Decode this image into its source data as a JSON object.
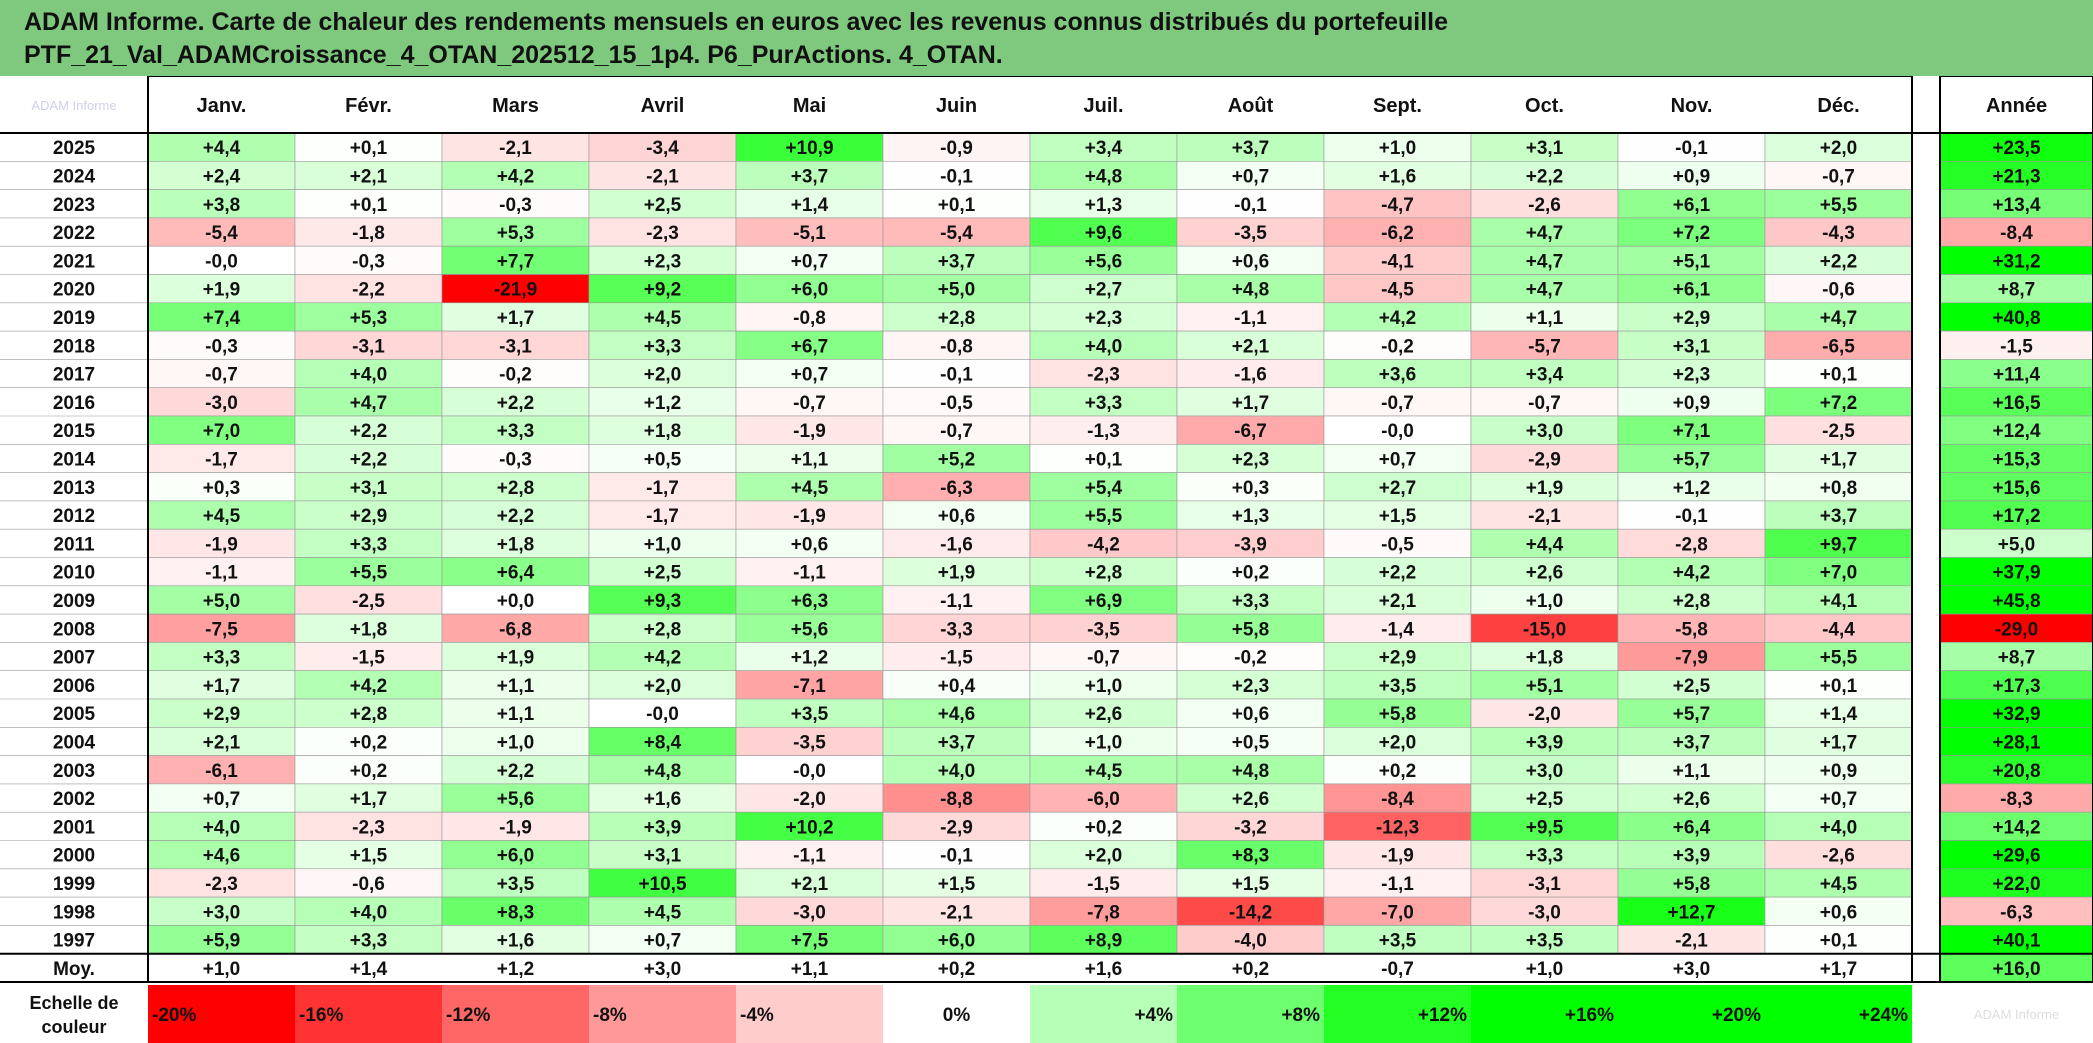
{
  "title": {
    "line1": "ADAM Informe. Carte de chaleur des rendements mensuels en euros avec les revenus connus distribués du portefeuille",
    "line2": "PTF_21_Val_ADAMCroissance_4_OTAN_202512_15_1p4. P6_PurActions. 4_OTAN."
  },
  "colors": {
    "title_bg": "#7fc97f",
    "negative_max": "#ff0000",
    "neutral": "#ffffff",
    "positive_max": "#00ff00",
    "grid": "#999999",
    "border": "#000000"
  },
  "corner_watermark": "ADAM Informe",
  "legend_watermark": "ADAM Informe",
  "chart_data": {
    "type": "heatmap",
    "title": "Carte de chaleur des rendements mensuels en euros",
    "months": [
      "Janv.",
      "Févr.",
      "Mars",
      "Avril",
      "Mai",
      "Juin",
      "Juil.",
      "Août",
      "Sept.",
      "Oct.",
      "Nov.",
      "Déc."
    ],
    "year_header": "Année",
    "rows": [
      {
        "year": "2025",
        "values": [
          "+4,4",
          "+0,1",
          "-2,1",
          "-3,4",
          "+10,9",
          "-0,9",
          "+3,4",
          "+3,7",
          "+1,0",
          "+3,1",
          "-0,1",
          "+2,0"
        ],
        "annual": "+23,5"
      },
      {
        "year": "2024",
        "values": [
          "+2,4",
          "+2,1",
          "+4,2",
          "-2,1",
          "+3,7",
          "-0,1",
          "+4,8",
          "+0,7",
          "+1,6",
          "+2,2",
          "+0,9",
          "-0,7"
        ],
        "annual": "+21,3"
      },
      {
        "year": "2023",
        "values": [
          "+3,8",
          "+0,1",
          "-0,3",
          "+2,5",
          "+1,4",
          "+0,1",
          "+1,3",
          "-0,1",
          "-4,7",
          "-2,6",
          "+6,1",
          "+5,5"
        ],
        "annual": "+13,4"
      },
      {
        "year": "2022",
        "values": [
          "-5,4",
          "-1,8",
          "+5,3",
          "-2,3",
          "-5,1",
          "-5,4",
          "+9,6",
          "-3,5",
          "-6,2",
          "+4,7",
          "+7,2",
          "-4,3"
        ],
        "annual": "-8,4"
      },
      {
        "year": "2021",
        "values": [
          "-0,0",
          "-0,3",
          "+7,7",
          "+2,3",
          "+0,7",
          "+3,7",
          "+5,6",
          "+0,6",
          "-4,1",
          "+4,7",
          "+5,1",
          "+2,2"
        ],
        "annual": "+31,2"
      },
      {
        "year": "2020",
        "values": [
          "+1,9",
          "-2,2",
          "-21,9",
          "+9,2",
          "+6,0",
          "+5,0",
          "+2,7",
          "+4,8",
          "-4,5",
          "+4,7",
          "+6,1",
          "-0,6"
        ],
        "annual": "+8,7"
      },
      {
        "year": "2019",
        "values": [
          "+7,4",
          "+5,3",
          "+1,7",
          "+4,5",
          "-0,8",
          "+2,8",
          "+2,3",
          "-1,1",
          "+4,2",
          "+1,1",
          "+2,9",
          "+4,7"
        ],
        "annual": "+40,8"
      },
      {
        "year": "2018",
        "values": [
          "-0,3",
          "-3,1",
          "-3,1",
          "+3,3",
          "+6,7",
          "-0,8",
          "+4,0",
          "+2,1",
          "-0,2",
          "-5,7",
          "+3,1",
          "-6,5"
        ],
        "annual": "-1,5"
      },
      {
        "year": "2017",
        "values": [
          "-0,7",
          "+4,0",
          "-0,2",
          "+2,0",
          "+0,7",
          "-0,1",
          "-2,3",
          "-1,6",
          "+3,6",
          "+3,4",
          "+2,3",
          "+0,1"
        ],
        "annual": "+11,4"
      },
      {
        "year": "2016",
        "values": [
          "-3,0",
          "+4,7",
          "+2,2",
          "+1,2",
          "-0,7",
          "-0,5",
          "+3,3",
          "+1,7",
          "-0,7",
          "-0,7",
          "+0,9",
          "+7,2"
        ],
        "annual": "+16,5"
      },
      {
        "year": "2015",
        "values": [
          "+7,0",
          "+2,2",
          "+3,3",
          "+1,8",
          "-1,9",
          "-0,7",
          "-1,3",
          "-6,7",
          "-0,0",
          "+3,0",
          "+7,1",
          "-2,5"
        ],
        "annual": "+12,4"
      },
      {
        "year": "2014",
        "values": [
          "-1,7",
          "+2,2",
          "-0,3",
          "+0,5",
          "+1,1",
          "+5,2",
          "+0,1",
          "+2,3",
          "+0,7",
          "-2,9",
          "+5,7",
          "+1,7"
        ],
        "annual": "+15,3"
      },
      {
        "year": "2013",
        "values": [
          "+0,3",
          "+3,1",
          "+2,8",
          "-1,7",
          "+4,5",
          "-6,3",
          "+5,4",
          "+0,3",
          "+2,7",
          "+1,9",
          "+1,2",
          "+0,8"
        ],
        "annual": "+15,6"
      },
      {
        "year": "2012",
        "values": [
          "+4,5",
          "+2,9",
          "+2,2",
          "-1,7",
          "-1,9",
          "+0,6",
          "+5,5",
          "+1,3",
          "+1,5",
          "-2,1",
          "-0,1",
          "+3,7"
        ],
        "annual": "+17,2"
      },
      {
        "year": "2011",
        "values": [
          "-1,9",
          "+3,3",
          "+1,8",
          "+1,0",
          "+0,6",
          "-1,6",
          "-4,2",
          "-3,9",
          "-0,5",
          "+4,4",
          "-2,8",
          "+9,7"
        ],
        "annual": "+5,0"
      },
      {
        "year": "2010",
        "values": [
          "-1,1",
          "+5,5",
          "+6,4",
          "+2,5",
          "-1,1",
          "+1,9",
          "+2,8",
          "+0,2",
          "+2,2",
          "+2,6",
          "+4,2",
          "+7,0"
        ],
        "annual": "+37,9"
      },
      {
        "year": "2009",
        "values": [
          "+5,0",
          "-2,5",
          "+0,0",
          "+9,3",
          "+6,3",
          "-1,1",
          "+6,9",
          "+3,3",
          "+2,1",
          "+1,0",
          "+2,8",
          "+4,1"
        ],
        "annual": "+45,8"
      },
      {
        "year": "2008",
        "values": [
          "-7,5",
          "+1,8",
          "-6,8",
          "+2,8",
          "+5,6",
          "-3,3",
          "-3,5",
          "+5,8",
          "-1,4",
          "-15,0",
          "-5,8",
          "-4,4"
        ],
        "annual": "-29,0"
      },
      {
        "year": "2007",
        "values": [
          "+3,3",
          "-1,5",
          "+1,9",
          "+4,2",
          "+1,2",
          "-1,5",
          "-0,7",
          "-0,2",
          "+2,9",
          "+1,8",
          "-7,9",
          "+5,5"
        ],
        "annual": "+8,7"
      },
      {
        "year": "2006",
        "values": [
          "+1,7",
          "+4,2",
          "+1,1",
          "+2,0",
          "-7,1",
          "+0,4",
          "+1,0",
          "+2,3",
          "+3,5",
          "+5,1",
          "+2,5",
          "+0,1"
        ],
        "annual": "+17,3"
      },
      {
        "year": "2005",
        "values": [
          "+2,9",
          "+2,8",
          "+1,1",
          "-0,0",
          "+3,5",
          "+4,6",
          "+2,6",
          "+0,6",
          "+5,8",
          "-2,0",
          "+5,7",
          "+1,4"
        ],
        "annual": "+32,9"
      },
      {
        "year": "2004",
        "values": [
          "+2,1",
          "+0,2",
          "+1,0",
          "+8,4",
          "-3,5",
          "+3,7",
          "+1,0",
          "+0,5",
          "+2,0",
          "+3,9",
          "+3,7",
          "+1,7"
        ],
        "annual": "+28,1"
      },
      {
        "year": "2003",
        "values": [
          "-6,1",
          "+0,2",
          "+2,2",
          "+4,8",
          "-0,0",
          "+4,0",
          "+4,5",
          "+4,8",
          "+0,2",
          "+3,0",
          "+1,1",
          "+0,9"
        ],
        "annual": "+20,8"
      },
      {
        "year": "2002",
        "values": [
          "+0,7",
          "+1,7",
          "+5,6",
          "+1,6",
          "-2,0",
          "-8,8",
          "-6,0",
          "+2,6",
          "-8,4",
          "+2,5",
          "+2,6",
          "+0,7"
        ],
        "annual": "-8,3"
      },
      {
        "year": "2001",
        "values": [
          "+4,0",
          "-2,3",
          "-1,9",
          "+3,9",
          "+10,2",
          "-2,9",
          "+0,2",
          "-3,2",
          "-12,3",
          "+9,5",
          "+6,4",
          "+4,0"
        ],
        "annual": "+14,2"
      },
      {
        "year": "2000",
        "values": [
          "+4,6",
          "+1,5",
          "+6,0",
          "+3,1",
          "-1,1",
          "-0,1",
          "+2,0",
          "+8,3",
          "-1,9",
          "+3,3",
          "+3,9",
          "-2,6"
        ],
        "annual": "+29,6"
      },
      {
        "year": "1999",
        "values": [
          "-2,3",
          "-0,6",
          "+3,5",
          "+10,5",
          "+2,1",
          "+1,5",
          "-1,5",
          "+1,5",
          "-1,1",
          "-3,1",
          "+5,8",
          "+4,5"
        ],
        "annual": "+22,0"
      },
      {
        "year": "1998",
        "values": [
          "+3,0",
          "+4,0",
          "+8,3",
          "+4,5",
          "-3,0",
          "-2,1",
          "-7,8",
          "-14,2",
          "-7,0",
          "-3,0",
          "+12,7",
          "+0,6"
        ],
        "annual": "-6,3"
      },
      {
        "year": "1997",
        "values": [
          "+5,9",
          "+3,3",
          "+1,6",
          "+0,7",
          "+7,5",
          "+6,0",
          "+8,9",
          "-4,0",
          "+3,5",
          "+3,5",
          "-2,1",
          "+0,1"
        ],
        "annual": "+40,1"
      }
    ],
    "average": {
      "label": "Moy.",
      "values": [
        "+1,0",
        "+1,4",
        "+1,2",
        "+3,0",
        "+1,1",
        "+0,2",
        "+1,6",
        "+0,2",
        "-0,7",
        "+1,0",
        "+3,0",
        "+1,7"
      ],
      "annual": "+16,0"
    },
    "color_scale": {
      "label_line1": "Echelle de",
      "label_line2": "couleur",
      "steps": [
        {
          "label": "-20%",
          "value": -20
        },
        {
          "label": "-16%",
          "value": -16
        },
        {
          "label": "-12%",
          "value": -12
        },
        {
          "label": "-8%",
          "value": -8
        },
        {
          "label": "-4%",
          "value": -4
        },
        {
          "label": "0%",
          "value": 0
        },
        {
          "label": "+4%",
          "value": 4
        },
        {
          "label": "+8%",
          "value": 8
        },
        {
          "label": "+12%",
          "value": 12
        },
        {
          "label": "+16%",
          "value": 16
        },
        {
          "label": "+20%",
          "value": 20
        },
        {
          "label": "+24%",
          "value": 24
        }
      ],
      "monthly_saturation": {
        "negative": -20,
        "positive": 14
      },
      "annual_saturation": {
        "negative": -25,
        "positive": 25
      }
    }
  }
}
